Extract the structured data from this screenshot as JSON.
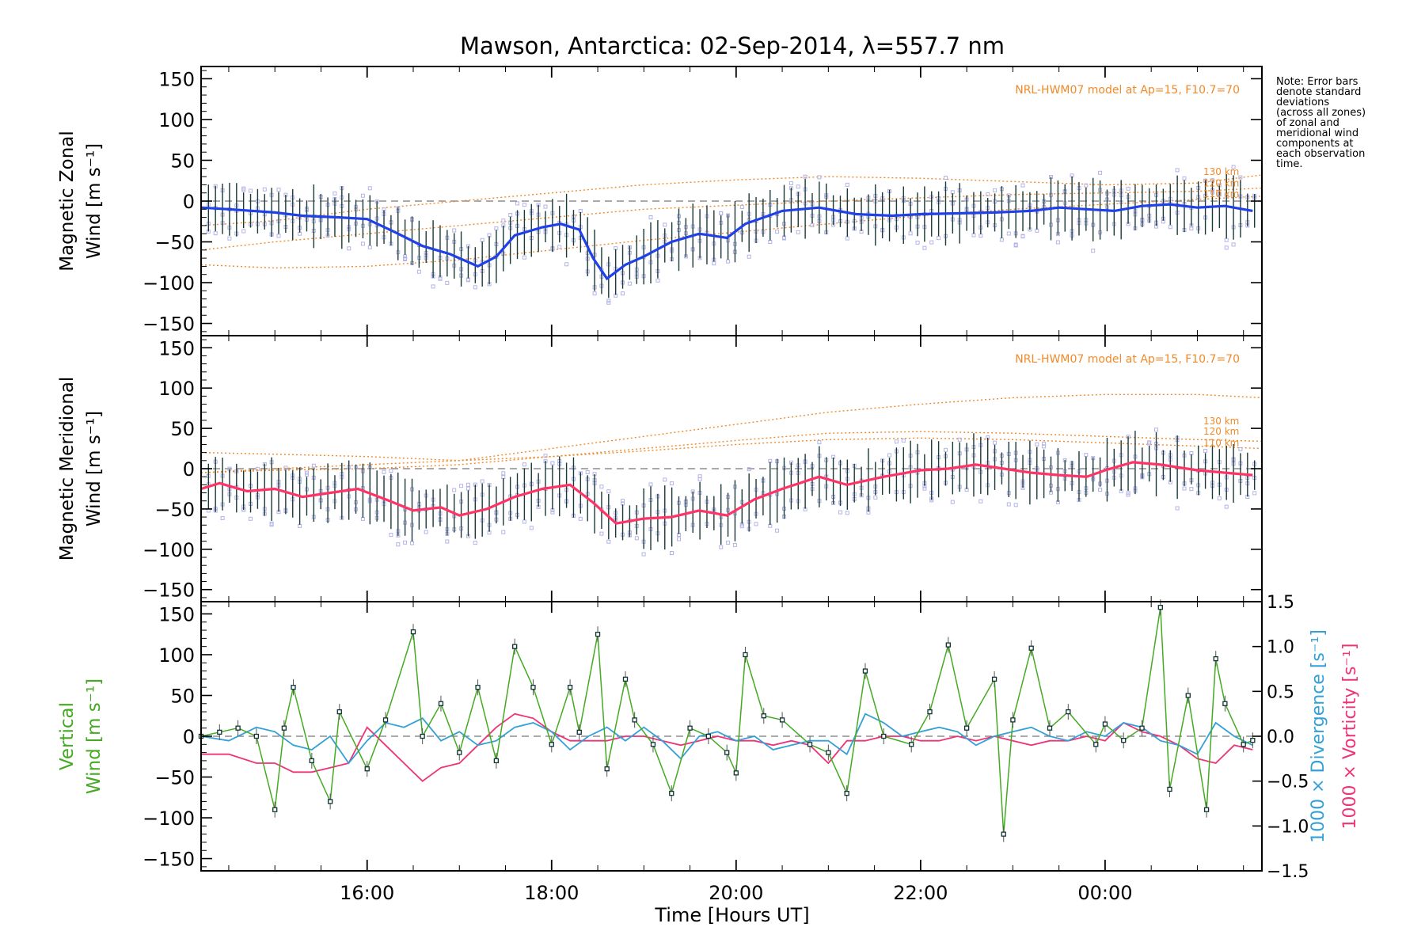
{
  "title": "Mawson, Antarctica: 02-Sep-2014, λ=557.7 nm",
  "note": [
    "Note: Error bars",
    "denote standard",
    "deviations",
    "(across all zones)",
    "of zonal and",
    "meridional wind",
    "components at",
    "each observation",
    "time."
  ],
  "colors": {
    "zonal_line": "#2040e8",
    "meridional_line": "#ff3366",
    "vertical_line": "#44aa22",
    "divergence": "#33a0d8",
    "vorticity": "#ee3377",
    "model": "#f08a2a",
    "errorbar": "#1a3a3a",
    "zone_points": "#b4b4e6"
  },
  "chart_data": [
    {
      "type": "line",
      "panel": "zonal",
      "ylabel": [
        "Magnetic Zonal",
        "Wind [m s⁻¹]"
      ],
      "ylim": [
        -165,
        165
      ],
      "yticks": [
        -150,
        -100,
        -50,
        0,
        50,
        100,
        150
      ],
      "model_label": "NRL-HWM07 model at Ap=15, F10.7=70",
      "model_altitudes": [
        "130 km",
        "120 km",
        "110 km"
      ],
      "series": [
        {
          "role": "mean",
          "x": [
            14.2,
            14.5,
            15.0,
            15.3,
            15.7,
            16.0,
            16.3,
            16.6,
            16.9,
            17.2,
            17.4,
            17.6,
            17.9,
            18.1,
            18.3,
            18.45,
            18.6,
            18.8,
            19.0,
            19.3,
            19.6,
            19.9,
            20.1,
            20.5,
            20.9,
            21.3,
            21.7,
            22.0,
            22.4,
            22.8,
            23.2,
            23.5,
            23.8,
            24.1,
            24.4,
            24.7,
            25.0,
            25.3,
            25.6
          ],
          "y": [
            -8,
            -10,
            -14,
            -18,
            -20,
            -22,
            -38,
            -55,
            -65,
            -80,
            -68,
            -42,
            -32,
            -28,
            -35,
            -70,
            -95,
            -78,
            -68,
            -50,
            -40,
            -45,
            -28,
            -12,
            -8,
            -16,
            -18,
            -16,
            -15,
            -14,
            -12,
            -8,
            -10,
            -12,
            -6,
            -4,
            -8,
            -6,
            -12
          ]
        },
        {
          "role": "model-130km",
          "x": [
            14.2,
            15.0,
            16.0,
            17.0,
            18.0,
            19.0,
            20.0,
            21.0,
            22.0,
            23.0,
            24.0,
            25.0,
            25.7
          ],
          "y": [
            -30,
            -24,
            -10,
            0,
            10,
            20,
            26,
            30,
            28,
            24,
            20,
            22,
            32
          ]
        },
        {
          "role": "model-120km",
          "x": [
            14.2,
            15.0,
            16.0,
            17.0,
            18.0,
            19.0,
            20.0,
            21.0,
            22.0,
            23.0,
            24.0,
            25.0,
            25.7
          ],
          "y": [
            -60,
            -50,
            -40,
            -30,
            -20,
            -10,
            -5,
            0,
            4,
            8,
            10,
            12,
            16
          ]
        },
        {
          "role": "model-110km",
          "x": [
            14.2,
            15.0,
            16.0,
            17.0,
            18.0,
            19.0,
            20.0,
            21.0,
            22.0,
            23.0,
            24.0,
            25.0,
            25.7
          ],
          "y": [
            -78,
            -82,
            -80,
            -72,
            -60,
            -48,
            -38,
            -28,
            -18,
            -10,
            -4,
            2,
            6
          ]
        }
      ]
    },
    {
      "type": "line",
      "panel": "meridional",
      "ylabel": [
        "Magnetic Meridional",
        "Wind [m s⁻¹]"
      ],
      "ylim": [
        -165,
        165
      ],
      "yticks": [
        -150,
        -100,
        -50,
        0,
        50,
        100,
        150
      ],
      "model_label": "NRL-HWM07 model at Ap=15, F10.7=70",
      "model_altitudes": [
        "130 km",
        "120 km",
        "110 km"
      ],
      "series": [
        {
          "role": "mean",
          "x": [
            14.2,
            14.4,
            14.7,
            15.0,
            15.3,
            15.6,
            15.9,
            16.2,
            16.5,
            16.8,
            17.0,
            17.3,
            17.6,
            17.9,
            18.2,
            18.45,
            18.7,
            19.0,
            19.3,
            19.6,
            19.9,
            20.2,
            20.5,
            20.9,
            21.2,
            21.6,
            22.0,
            22.3,
            22.6,
            22.9,
            23.2,
            23.5,
            23.8,
            24.0,
            24.3,
            24.6,
            25.0,
            25.3,
            25.6
          ],
          "y": [
            -25,
            -18,
            -28,
            -25,
            -35,
            -30,
            -25,
            -38,
            -52,
            -48,
            -58,
            -50,
            -35,
            -25,
            -20,
            -42,
            -68,
            -62,
            -60,
            -52,
            -58,
            -38,
            -25,
            -10,
            -20,
            -10,
            -2,
            0,
            5,
            0,
            -5,
            -8,
            -10,
            -2,
            8,
            5,
            -2,
            -5,
            -8
          ]
        },
        {
          "role": "model-130km",
          "x": [
            14.2,
            15.0,
            16.0,
            17.0,
            18.0,
            19.0,
            20.0,
            21.0,
            22.0,
            23.0,
            24.0,
            25.0,
            25.7
          ],
          "y": [
            -5,
            0,
            5,
            10,
            25,
            40,
            55,
            70,
            80,
            88,
            92,
            92,
            88
          ]
        },
        {
          "role": "model-120km",
          "x": [
            14.2,
            15.0,
            16.0,
            17.0,
            18.0,
            19.0,
            20.0,
            21.0,
            22.0,
            23.0,
            24.0,
            25.0,
            25.7
          ],
          "y": [
            -5,
            -2,
            0,
            5,
            15,
            25,
            35,
            44,
            46,
            44,
            40,
            36,
            34
          ]
        },
        {
          "role": "model-110km",
          "x": [
            14.2,
            15.0,
            16.0,
            17.0,
            18.0,
            19.0,
            20.0,
            21.0,
            22.0,
            23.0,
            24.0,
            25.0,
            25.7
          ],
          "y": [
            20,
            18,
            15,
            10,
            15,
            22,
            30,
            36,
            38,
            36,
            32,
            28,
            25
          ]
        }
      ]
    },
    {
      "type": "line",
      "panel": "vertical",
      "ylabel": [
        "Vertical",
        "Wind [m s⁻¹]"
      ],
      "ylim": [
        -165,
        165
      ],
      "yticks": [
        -150,
        -100,
        -50,
        0,
        50,
        100,
        150
      ],
      "right_axis": {
        "ylabels": [
          "1000 × Divergence [s⁻¹]",
          "1000 × Vorticity [s⁻¹]"
        ],
        "ylim": [
          -1.5,
          1.5
        ],
        "yticks": [
          -1.5,
          -1.0,
          -0.5,
          0.0,
          0.5,
          1.0,
          1.5
        ],
        "ticklabels": [
          "−1.5",
          "−1.0",
          "−0.5",
          "0.0",
          "0.5",
          "1.0",
          "1.5"
        ]
      },
      "series": [
        {
          "role": "vertical-wind",
          "x": [
            14.2,
            14.4,
            14.6,
            14.8,
            15.0,
            15.1,
            15.2,
            15.4,
            15.6,
            15.7,
            16.0,
            16.2,
            16.5,
            16.6,
            16.8,
            17.0,
            17.2,
            17.4,
            17.6,
            17.8,
            18.0,
            18.2,
            18.3,
            18.5,
            18.6,
            18.8,
            18.9,
            19.1,
            19.3,
            19.5,
            19.7,
            19.9,
            20.0,
            20.1,
            20.3,
            20.5,
            20.8,
            21.0,
            21.2,
            21.4,
            21.6,
            21.9,
            22.1,
            22.3,
            22.5,
            22.8,
            22.9,
            23.0,
            23.2,
            23.4,
            23.6,
            23.9,
            24.0,
            24.2,
            24.4,
            24.6,
            24.7,
            24.9,
            25.1,
            25.2,
            25.3,
            25.5,
            25.6
          ],
          "y": [
            0,
            5,
            10,
            0,
            -90,
            10,
            60,
            -30,
            -80,
            30,
            -40,
            20,
            128,
            0,
            40,
            -20,
            60,
            -30,
            110,
            60,
            -10,
            60,
            5,
            125,
            -40,
            70,
            20,
            -10,
            -70,
            10,
            0,
            -20,
            -45,
            100,
            25,
            20,
            -10,
            -20,
            -70,
            80,
            0,
            -10,
            30,
            112,
            10,
            70,
            -120,
            20,
            108,
            10,
            30,
            -10,
            15,
            -5,
            10,
            158,
            -65,
            50,
            -90,
            95,
            40,
            -10,
            -5
          ]
        },
        {
          "role": "divergence",
          "x": [
            14.2,
            14.5,
            14.8,
            15.0,
            15.2,
            15.4,
            15.6,
            15.8,
            16.0,
            16.2,
            16.4,
            16.6,
            16.8,
            17.0,
            17.2,
            17.4,
            17.6,
            17.8,
            18.0,
            18.2,
            18.4,
            18.6,
            18.8,
            19.0,
            19.2,
            19.4,
            19.6,
            19.8,
            20.0,
            20.2,
            20.4,
            20.6,
            20.8,
            21.0,
            21.2,
            21.4,
            21.6,
            21.8,
            22.0,
            22.2,
            22.4,
            22.6,
            22.8,
            23.0,
            23.2,
            23.4,
            23.6,
            23.8,
            24.0,
            24.2,
            24.4,
            24.6,
            24.8,
            25.0,
            25.2,
            25.4,
            25.6
          ],
          "y": [
            0.0,
            -0.05,
            0.1,
            0.05,
            -0.1,
            -0.15,
            0.0,
            -0.3,
            -0.05,
            0.15,
            0.1,
            0.2,
            -0.05,
            0.05,
            -0.1,
            -0.05,
            0.1,
            0.15,
            0.05,
            -0.15,
            0.0,
            0.1,
            -0.05,
            0.1,
            -0.05,
            -0.25,
            0.0,
            0.05,
            -0.05,
            0.0,
            -0.15,
            -0.1,
            -0.05,
            -0.05,
            -0.2,
            0.25,
            0.15,
            0.0,
            0.05,
            0.1,
            0.05,
            -0.1,
            0.0,
            0.05,
            0.1,
            0.0,
            -0.05,
            0.05,
            0.0,
            0.15,
            0.1,
            -0.05,
            -0.1,
            -0.2,
            0.15,
            0.0,
            -0.1
          ]
        },
        {
          "role": "vorticity",
          "x": [
            14.2,
            14.5,
            14.8,
            15.0,
            15.2,
            15.4,
            15.6,
            15.8,
            16.0,
            16.2,
            16.4,
            16.6,
            16.8,
            17.0,
            17.2,
            17.4,
            17.6,
            17.8,
            18.0,
            18.2,
            18.4,
            18.6,
            18.8,
            19.0,
            19.2,
            19.4,
            19.6,
            19.8,
            20.0,
            20.2,
            20.4,
            20.6,
            20.8,
            21.0,
            21.2,
            21.4,
            21.6,
            21.8,
            22.0,
            22.2,
            22.4,
            22.6,
            22.8,
            23.0,
            23.2,
            23.4,
            23.6,
            23.8,
            24.0,
            24.2,
            24.4,
            24.6,
            24.8,
            25.0,
            25.2,
            25.4,
            25.6
          ],
          "y": [
            -0.2,
            -0.2,
            -0.3,
            -0.3,
            -0.4,
            -0.4,
            -0.35,
            -0.3,
            0.1,
            -0.1,
            -0.3,
            -0.5,
            -0.35,
            -0.3,
            -0.1,
            0.1,
            0.25,
            0.2,
            0.05,
            -0.05,
            -0.05,
            -0.05,
            0.0,
            0.0,
            -0.05,
            -0.1,
            -0.05,
            0.0,
            -0.05,
            -0.05,
            -0.1,
            -0.05,
            -0.1,
            -0.3,
            -0.05,
            -0.05,
            0.0,
            0.0,
            -0.05,
            -0.05,
            0.0,
            -0.05,
            0.0,
            -0.05,
            -0.1,
            -0.05,
            -0.05,
            0.0,
            -0.05,
            0.15,
            0.05,
            0.0,
            -0.1,
            -0.25,
            -0.3,
            -0.1,
            -0.15
          ]
        }
      ]
    }
  ],
  "xaxis": {
    "label": "Time [Hours UT]",
    "xlim": [
      14.2,
      25.7
    ],
    "ticks": [
      16,
      18,
      20,
      22,
      24
    ],
    "ticklabels": [
      "16:00",
      "18:00",
      "20:00",
      "22:00",
      "00:00"
    ]
  }
}
